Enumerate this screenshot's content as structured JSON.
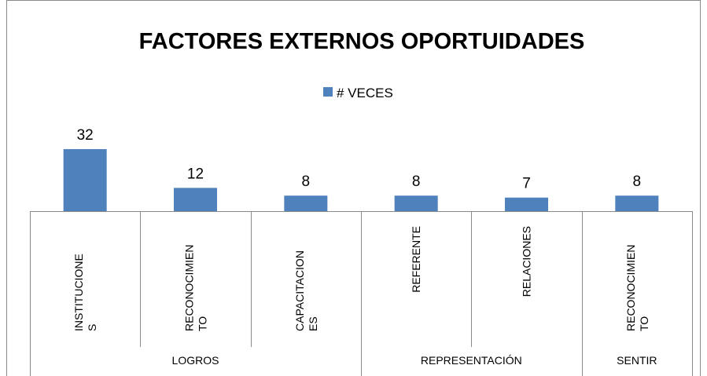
{
  "chart_data": {
    "type": "bar",
    "title": "FACTORES EXTERNOS OPORTUIDADES",
    "categories": [
      "INSTITUCIONES",
      "RECONOCIMIENTO",
      "CAPACITACIONES",
      "REFERENTE",
      "RELACIONES",
      "RECONOCIMIENTO"
    ],
    "groups": [
      {
        "name": "LOGROS",
        "count": 3
      },
      {
        "name": "REPRESENTACIÓN",
        "count": 2
      },
      {
        "name": "SENTIR",
        "count": 1
      }
    ],
    "series": [
      {
        "name": "# VECES",
        "color": "#4f81bd",
        "values": [
          32,
          12,
          8,
          8,
          7,
          8
        ]
      }
    ],
    "legend": "top"
  }
}
